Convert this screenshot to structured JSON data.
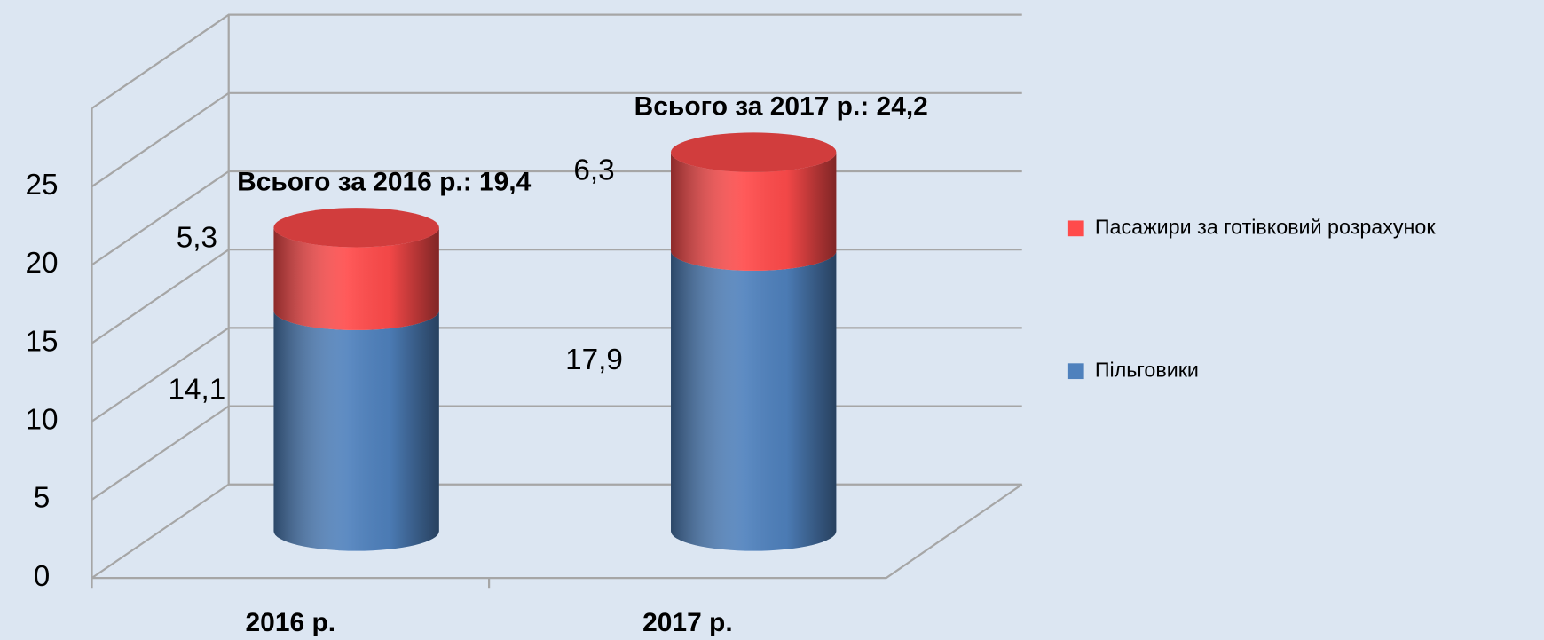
{
  "chart_data": {
    "type": "bar3d_stacked",
    "categories": [
      "2016 р.",
      "2017 р."
    ],
    "series": [
      {
        "name": "Пільговики",
        "color": "#4f81bd",
        "values": [
          14.1,
          17.9
        ],
        "value_labels": [
          "14,1",
          "17,9"
        ]
      },
      {
        "name": "Пасажири за готівковий розрахунок",
        "color": "#ff4b4b",
        "values": [
          5.3,
          6.3
        ],
        "value_labels": [
          "5,3",
          "6,3"
        ]
      }
    ],
    "annotations": [
      "Всього за 2016 р.: 19,4",
      "Всього за 2017 р.: 24,2"
    ],
    "ylim": [
      0,
      30
    ],
    "yticks": [
      0,
      5,
      10,
      15,
      20,
      25
    ],
    "grid": true,
    "legend": "right"
  }
}
